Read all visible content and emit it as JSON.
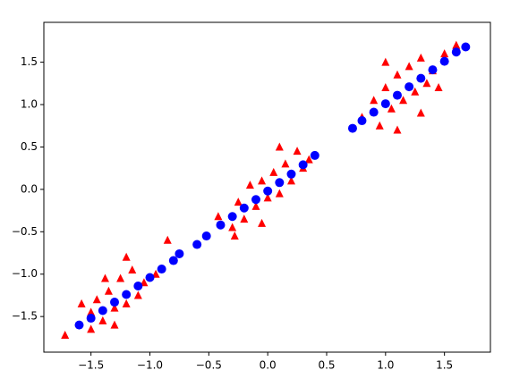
{
  "chart_data": {
    "type": "scatter",
    "xlim": [
      -1.9,
      1.89
    ],
    "ylim": [
      -1.92,
      1.97
    ],
    "xticks": [
      {
        "value": -1.5,
        "label": "−1.5"
      },
      {
        "value": -1.0,
        "label": "−1.0"
      },
      {
        "value": -0.5,
        "label": "−0.5"
      },
      {
        "value": 0,
        "label": "0.0"
      },
      {
        "value": 0.5,
        "label": "0.5"
      },
      {
        "value": 1.0,
        "label": "1.0"
      },
      {
        "value": 1.5,
        "label": "1.5"
      }
    ],
    "yticks": [
      {
        "value": -1.5,
        "label": "−1.5"
      },
      {
        "value": -1.0,
        "label": "−1.0"
      },
      {
        "value": -0.5,
        "label": "−0.5"
      },
      {
        "value": 0,
        "label": "0.0"
      },
      {
        "value": 0.5,
        "label": "0.5"
      },
      {
        "value": 1.0,
        "label": "1.0"
      },
      {
        "value": 1.5,
        "label": "1.5"
      }
    ],
    "series": [
      {
        "color": "#ff0000",
        "marker": "triangle",
        "x": [
          -1.72,
          -1.5,
          -1.45,
          -1.4,
          -1.35,
          -1.3,
          -1.25,
          -1.2,
          -1.15,
          -1.1,
          -1.05,
          -0.95,
          -1.5,
          -1.38,
          -1.58,
          -1.2,
          -0.85,
          -1.3,
          -0.42,
          -0.3,
          -0.25,
          -0.2,
          -0.15,
          -0.1,
          -0.05,
          0,
          0.05,
          0.1,
          0.15,
          0.2,
          0.25,
          0.3,
          0.35,
          -0.05,
          0.1,
          -0.28,
          0.8,
          0.9,
          0.95,
          1.0,
          1.05,
          1.1,
          1.15,
          1.2,
          1.25,
          1.3,
          1.35,
          1.4,
          1.45,
          1.5,
          1.1,
          1.0,
          1.6,
          1.3
        ],
        "y": [
          -1.72,
          -1.45,
          -1.3,
          -1.55,
          -1.2,
          -1.4,
          -1.05,
          -1.35,
          -0.95,
          -1.25,
          -1.1,
          -1.0,
          -1.65,
          -1.05,
          -1.35,
          -0.8,
          -0.6,
          -1.6,
          -0.32,
          -0.45,
          -0.15,
          -0.35,
          0.05,
          -0.2,
          0.1,
          -0.1,
          0.2,
          -0.05,
          0.3,
          0.1,
          0.45,
          0.25,
          0.35,
          -0.4,
          0.5,
          -0.55,
          0.85,
          1.05,
          0.75,
          1.2,
          0.95,
          1.35,
          1.05,
          1.45,
          1.15,
          1.55,
          1.25,
          1.4,
          1.2,
          1.6,
          0.7,
          1.5,
          1.7,
          0.9
        ]
      },
      {
        "color": "#0000ff",
        "marker": "circle",
        "x": [
          -1.6,
          -1.5,
          -1.4,
          -1.3,
          -1.2,
          -1.1,
          -1.0,
          -0.9,
          -0.8,
          -0.75,
          -0.6,
          -0.52,
          -0.4,
          -0.3,
          -0.2,
          -0.1,
          0,
          0.1,
          0.2,
          0.3,
          0.4,
          0.72,
          0.8,
          0.9,
          1.0,
          1.1,
          1.2,
          1.3,
          1.4,
          1.5,
          1.6,
          1.68
        ],
        "y": [
          -1.6,
          -1.52,
          -1.43,
          -1.33,
          -1.24,
          -1.14,
          -1.04,
          -0.94,
          -0.84,
          -0.76,
          -0.65,
          -0.55,
          -0.42,
          -0.32,
          -0.22,
          -0.12,
          -0.02,
          0.08,
          0.18,
          0.29,
          0.4,
          0.72,
          0.81,
          0.91,
          1.01,
          1.11,
          1.21,
          1.31,
          1.41,
          1.51,
          1.62,
          1.68
        ]
      }
    ]
  }
}
